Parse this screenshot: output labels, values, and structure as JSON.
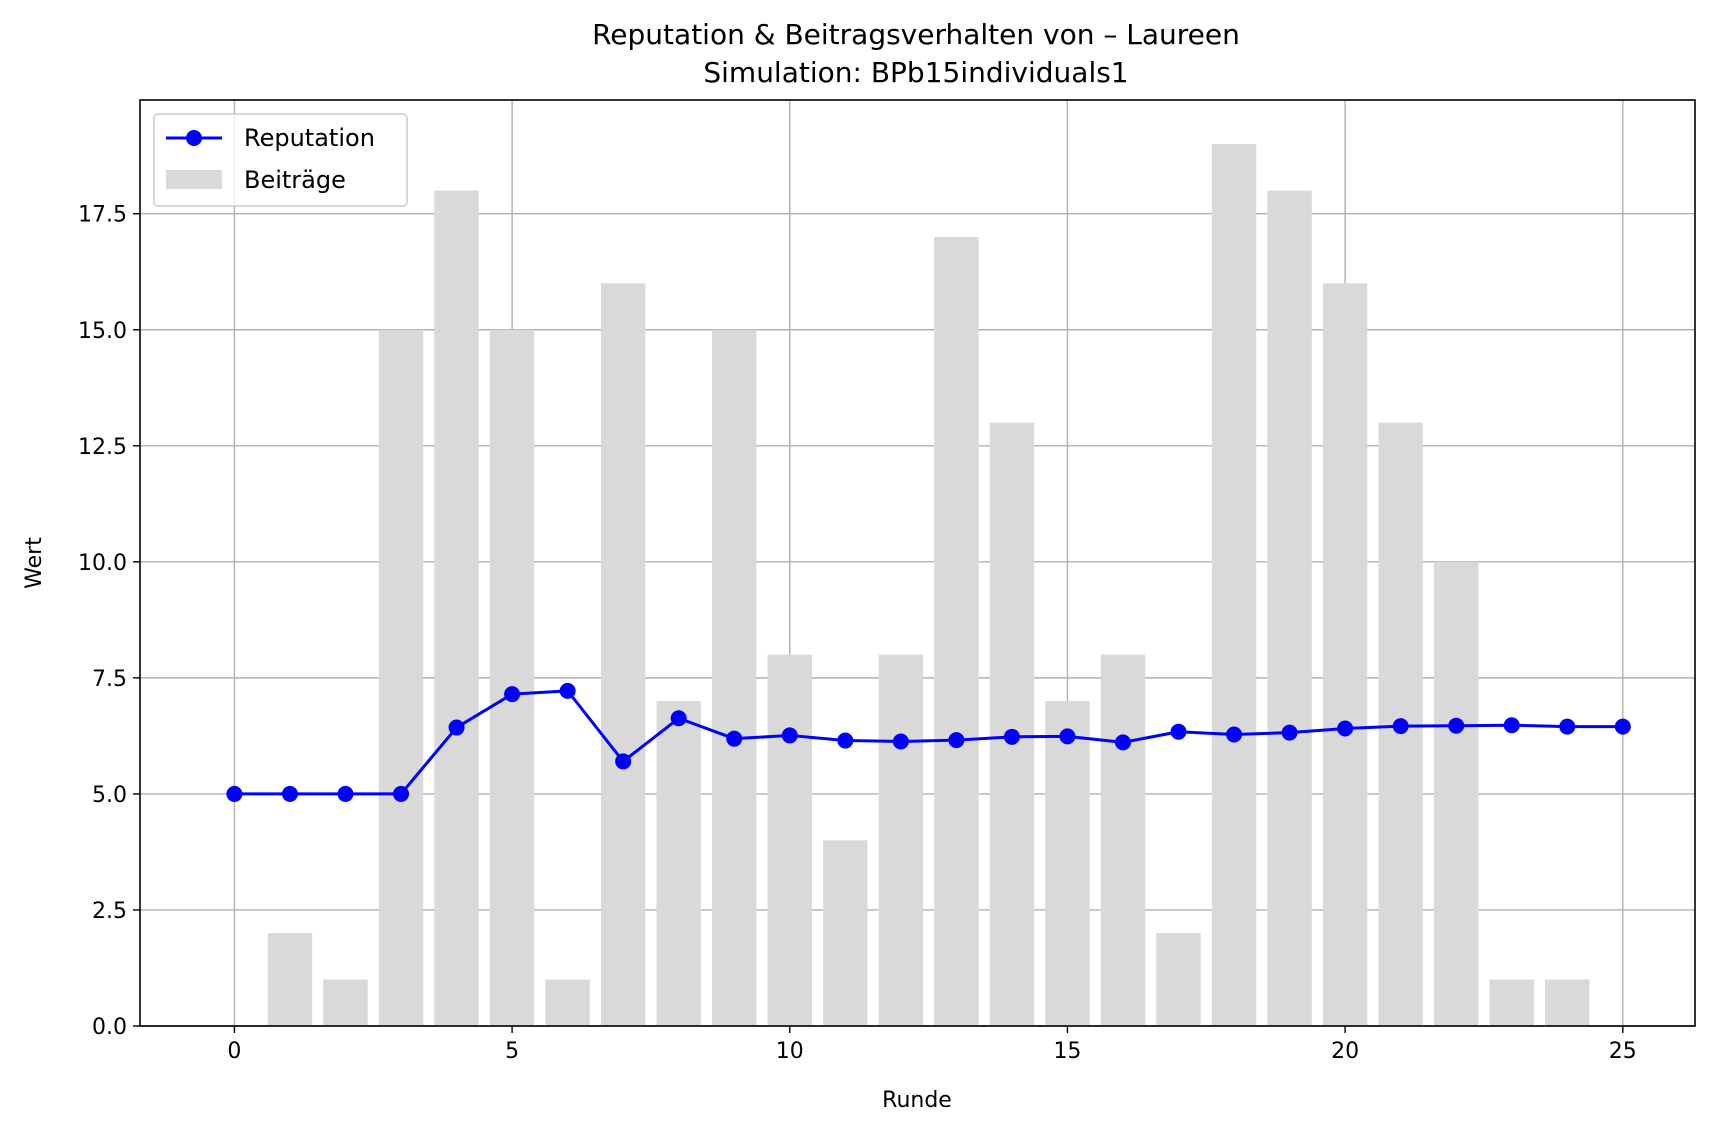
{
  "chart_data": {
    "type": "bar+line",
    "title": "Reputation & Beitragsverhalten von – Laureen",
    "subtitle": "Simulation: BPb15individuals1",
    "xlabel": "Runde",
    "ylabel": "Wert",
    "xlim": [
      -1.7,
      26.3
    ],
    "ylim": [
      0,
      19.95
    ],
    "x_ticks": [
      0,
      5,
      10,
      15,
      20,
      25
    ],
    "y_ticks": [
      0.0,
      2.5,
      5.0,
      7.5,
      10.0,
      12.5,
      15.0,
      17.5
    ],
    "y_tick_labels": [
      "0.0",
      "2.5",
      "5.0",
      "7.5",
      "10.0",
      "12.5",
      "15.0",
      "17.5"
    ],
    "grid": true,
    "legend_position": "upper-left",
    "legend": [
      {
        "label": "Reputation",
        "kind": "line-marker",
        "color": "#0000ff"
      },
      {
        "label": "Beiträge",
        "kind": "bar",
        "color": "#d9d9d9"
      }
    ],
    "x": [
      0,
      1,
      2,
      3,
      4,
      5,
      6,
      7,
      8,
      9,
      10,
      11,
      12,
      13,
      14,
      15,
      16,
      17,
      18,
      19,
      20,
      21,
      22,
      23,
      24,
      25
    ],
    "series": [
      {
        "name": "Beiträge",
        "kind": "bar",
        "color": "#d9d9d9",
        "values": [
          0,
          2,
          1,
          15,
          18,
          15,
          1,
          16,
          7,
          15,
          8,
          4,
          8,
          17,
          13,
          7,
          8,
          2,
          19,
          18,
          16,
          13,
          10,
          1,
          1,
          0
        ]
      },
      {
        "name": "Reputation",
        "kind": "line",
        "color": "#0000ff",
        "values": [
          5.0,
          5.0,
          5.0,
          5.0,
          6.43,
          7.15,
          7.22,
          5.7,
          6.63,
          6.19,
          6.26,
          6.15,
          6.13,
          6.16,
          6.23,
          6.24,
          6.11,
          6.34,
          6.28,
          6.32,
          6.41,
          6.46,
          6.47,
          6.48,
          6.45,
          6.45
        ]
      }
    ]
  }
}
